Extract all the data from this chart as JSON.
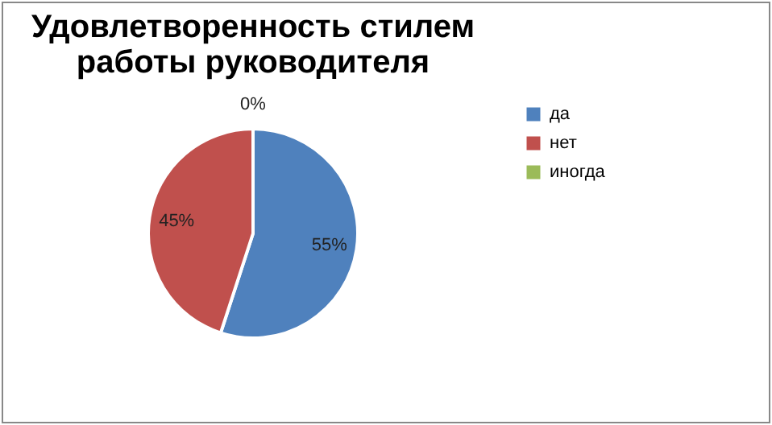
{
  "chart_data": {
    "type": "pie",
    "title": "Удовлетворенность стилем работы руководителя",
    "categories": [
      "да",
      "нет",
      "иногда"
    ],
    "values": [
      55,
      45,
      0
    ],
    "colors": [
      "#4f81bd",
      "#c0504d",
      "#9bbb59"
    ],
    "value_labels": [
      "55%",
      "45%",
      "0%"
    ],
    "legend": "right"
  }
}
